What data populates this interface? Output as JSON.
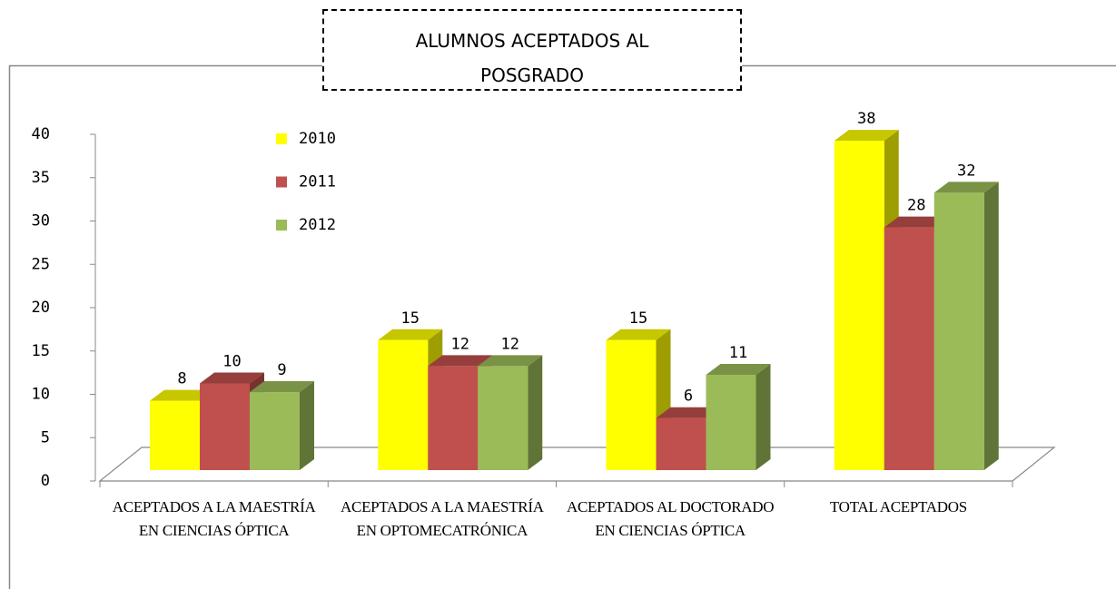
{
  "chart_data": {
    "type": "bar3d",
    "title": "ALUMNOS ACEPTADOS AL POSGRADO",
    "categories": [
      "ACEPTADOS A LA MAESTRÍA EN CIENCIAS ÓPTICA",
      "ACEPTADOS A LA MAESTRÍA EN OPTOMECATRÓNICA",
      "ACEPTADOS AL DOCTORADO EN CIENCIAS ÓPTICA",
      "TOTAL ACEPTADOS"
    ],
    "series": [
      {
        "name": "2010",
        "color": "#ffff00",
        "values": [
          8,
          15,
          15,
          38
        ]
      },
      {
        "name": "2011",
        "color": "#c0504d",
        "values": [
          10,
          12,
          6,
          28
        ]
      },
      {
        "name": "2012",
        "color": "#9bbb59",
        "values": [
          9,
          12,
          11,
          32
        ]
      }
    ],
    "ylim": [
      0,
      40
    ],
    "yticks": [
      0,
      5,
      10,
      15,
      20,
      25,
      30,
      35,
      40
    ],
    "legend": "top-left"
  }
}
